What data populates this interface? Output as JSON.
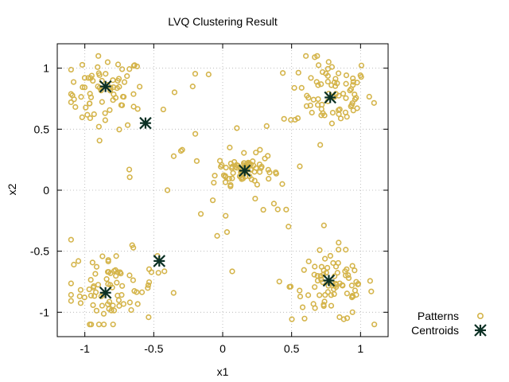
{
  "chart_data": {
    "type": "scatter",
    "title": "LVQ Clustering Result",
    "xlabel": "x1",
    "ylabel": "x2",
    "xlim": [
      -1.2,
      1.2
    ],
    "ylim": [
      -1.2,
      1.2
    ],
    "xticks": [
      -1,
      -0.5,
      0,
      0.5,
      1
    ],
    "yticks": [
      -1,
      -0.5,
      0,
      0.5,
      1
    ],
    "grid": true,
    "legend_placement": "bottom-right",
    "series": [
      {
        "name": "Patterns",
        "marker": "circle",
        "color": "#d4b44a",
        "x": [],
        "y": []
      },
      {
        "name": "Centroids",
        "marker": "asterisk",
        "color": "#0b3024",
        "x": [
          -0.85,
          -0.56,
          0.78,
          0.16,
          -0.46,
          -0.85,
          0.77
        ],
        "y": [
          0.85,
          0.55,
          0.76,
          0.16,
          -0.58,
          -0.84,
          -0.74
        ]
      }
    ],
    "pattern_clusters": [
      {
        "cx": -0.85,
        "cy": 0.8,
        "sx": 0.14,
        "sy": 0.15,
        "n": 70
      },
      {
        "cx": 0.78,
        "cy": 0.8,
        "sx": 0.15,
        "sy": 0.15,
        "n": 75
      },
      {
        "cx": 0.16,
        "cy": 0.17,
        "sx": 0.1,
        "sy": 0.06,
        "n": 70
      },
      {
        "cx": -0.8,
        "cy": -0.8,
        "sx": 0.16,
        "sy": 0.15,
        "n": 80
      },
      {
        "cx": 0.8,
        "cy": -0.78,
        "sx": 0.15,
        "sy": 0.15,
        "n": 80
      },
      {
        "cx": 0.0,
        "cy": 0.0,
        "sx": 0.45,
        "sy": 0.45,
        "n": 45
      }
    ]
  }
}
